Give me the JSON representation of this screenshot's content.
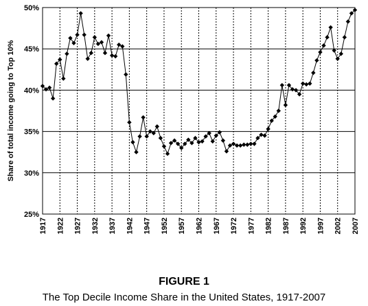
{
  "figure": {
    "title": "FIGURE 1",
    "caption": "The Top Decile Income Share in the United States, 1917-2007"
  },
  "chart_data": {
    "type": "line",
    "ylabel": "Share of total income going to Top 10%",
    "xlabel": "",
    "xlim": [
      1917,
      2007
    ],
    "ylim": [
      25,
      50
    ],
    "x_ticks": [
      "1917",
      "1922",
      "1927",
      "1932",
      "1937",
      "1942",
      "1947",
      "1952",
      "1957",
      "1962",
      "1967",
      "1972",
      "1977",
      "1982",
      "1987",
      "1992",
      "1997",
      "2002",
      "2007"
    ],
    "y_ticks": [
      "25%",
      "30%",
      "35%",
      "40%",
      "45%",
      "50%"
    ],
    "y_tick_values": [
      25,
      30,
      35,
      40,
      45,
      50
    ],
    "grid": "horizontal solid at y ticks, vertical dotted at x ticks",
    "marker": "diamond",
    "series": [
      {
        "x": [
          1917,
          1918,
          1919,
          1920,
          1921,
          1922,
          1923,
          1924,
          1925,
          1926,
          1927,
          1928,
          1929,
          1930,
          1931,
          1932,
          1933,
          1934,
          1935,
          1936,
          1937,
          1938,
          1939,
          1940,
          1941,
          1942,
          1943,
          1944,
          1945,
          1946,
          1947,
          1948,
          1949,
          1950,
          1951,
          1952,
          1953,
          1954,
          1955,
          1956,
          1957,
          1958,
          1959,
          1960,
          1961,
          1962,
          1963,
          1964,
          1965,
          1966,
          1967,
          1968,
          1969,
          1970,
          1971,
          1972,
          1973,
          1974,
          1975,
          1976,
          1977,
          1978,
          1979,
          1980,
          1981,
          1982,
          1983,
          1984,
          1985,
          1986,
          1987,
          1988,
          1989,
          1990,
          1991,
          1992,
          1993,
          1994,
          1995,
          1996,
          1997,
          1998,
          1999,
          2000,
          2001,
          2002,
          2003,
          2004,
          2005,
          2006,
          2007
        ],
        "values": [
          40.5,
          40.1,
          40.3,
          39.0,
          43.2,
          43.7,
          41.4,
          44.4,
          46.3,
          45.7,
          46.7,
          49.3,
          46.7,
          43.8,
          44.5,
          46.4,
          45.6,
          45.8,
          44.5,
          46.6,
          44.2,
          44.1,
          45.5,
          45.3,
          41.9,
          36.1,
          33.7,
          32.5,
          34.4,
          36.7,
          34.4,
          35.0,
          34.8,
          35.6,
          34.2,
          33.2,
          32.3,
          33.6,
          33.9,
          33.5,
          33.0,
          33.5,
          34.0,
          33.6,
          34.2,
          33.7,
          33.8,
          34.4,
          34.8,
          33.8,
          34.5,
          34.9,
          33.9,
          32.6,
          33.3,
          33.5,
          33.3,
          33.3,
          33.4,
          33.4,
          33.5,
          33.5,
          34.2,
          34.6,
          34.5,
          35.3,
          36.3,
          36.8,
          37.5,
          40.6,
          38.2,
          40.6,
          40.1,
          40.0,
          39.5,
          40.8,
          40.7,
          40.8,
          42.1,
          43.6,
          44.6,
          45.4,
          46.4,
          47.6,
          44.8,
          43.8,
          44.4,
          46.4,
          48.3,
          49.3,
          49.7
        ]
      }
    ]
  }
}
